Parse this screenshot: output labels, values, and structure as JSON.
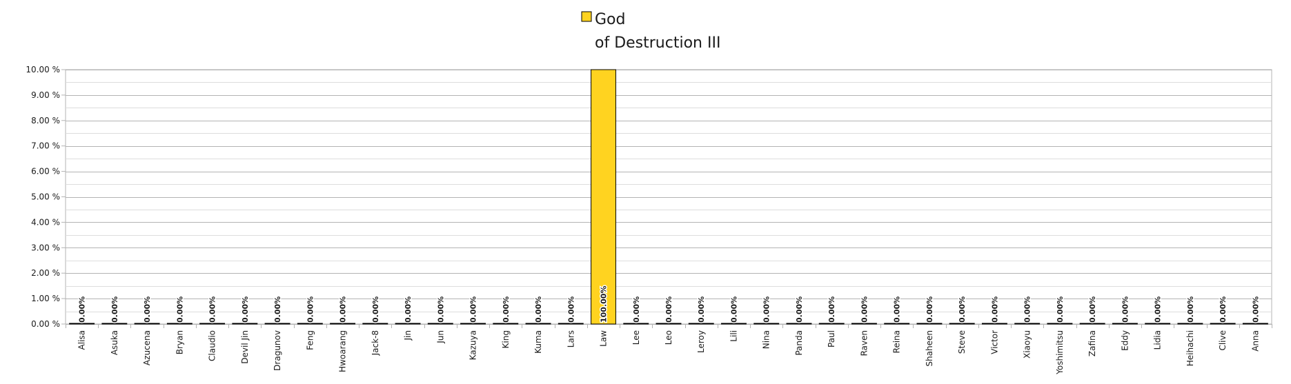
{
  "chart_data": {
    "type": "bar",
    "title": "",
    "xlabel": "",
    "ylabel": "",
    "legend_position": "top-center",
    "grid": true,
    "y_axis": {
      "min": 0,
      "max": 10,
      "step": 1,
      "format": "percent",
      "tick_labels": [
        "0.00 %",
        "1.00 %",
        "2.00 %",
        "3.00 %",
        "4.00 %",
        "5.00 %",
        "6.00 %",
        "7.00 %",
        "8.00 %",
        "9.00 %",
        "10.00 %"
      ]
    },
    "categories": [
      "Alisa",
      "Asuka",
      "Azucena",
      "Bryan",
      "Claudio",
      "Devil Jin",
      "Dragunov",
      "Feng",
      "Hwoarang",
      "Jack-8",
      "Jin",
      "Jun",
      "Kazuya",
      "King",
      "Kuma",
      "Lars",
      "Law",
      "Lee",
      "Leo",
      "Leroy",
      "Lili",
      "Nina",
      "Panda",
      "Paul",
      "Raven",
      "Reina",
      "Shaheen",
      "Steve",
      "Victor",
      "Xiaoyu",
      "Yoshimitsu",
      "Zafina",
      "Eddy",
      "Lidia",
      "Heihachi",
      "Clive",
      "Anna"
    ],
    "series": [
      {
        "name": "God\nof Destruction III",
        "legend_lines": [
          "God",
          "of Destruction III"
        ],
        "color": "#FFD320",
        "values": [
          0,
          0,
          0,
          0,
          0,
          0,
          0,
          0,
          0,
          0,
          0,
          0,
          0,
          0,
          0,
          0,
          100,
          0,
          0,
          0,
          0,
          0,
          0,
          0,
          0,
          0,
          0,
          0,
          0,
          0,
          0,
          0,
          0,
          0,
          0,
          0,
          0
        ],
        "data_labels": [
          "0.00%",
          "0.00%",
          "0.00%",
          "0.00%",
          "0.00%",
          "0.00%",
          "0.00%",
          "0.00%",
          "0.00%",
          "0.00%",
          "0.00%",
          "0.00%",
          "0.00%",
          "0.00%",
          "0.00%",
          "0.00%",
          "100.00%",
          "0.00%",
          "0.00%",
          "0.00%",
          "0.00%",
          "0.00%",
          "0.00%",
          "0.00%",
          "0.00%",
          "0.00%",
          "0.00%",
          "0.00%",
          "0.00%",
          "0.00%",
          "0.00%",
          "0.00%",
          "0.00%",
          "0.00%",
          "0.00%",
          "0.00%",
          "0.00%"
        ]
      }
    ],
    "colors": {
      "bar_fill": "#FFD320",
      "bar_stroke": "#000000",
      "grid": "#b3b3b3",
      "axis": "#b3b3b3",
      "text": "#1a1a1a"
    }
  }
}
